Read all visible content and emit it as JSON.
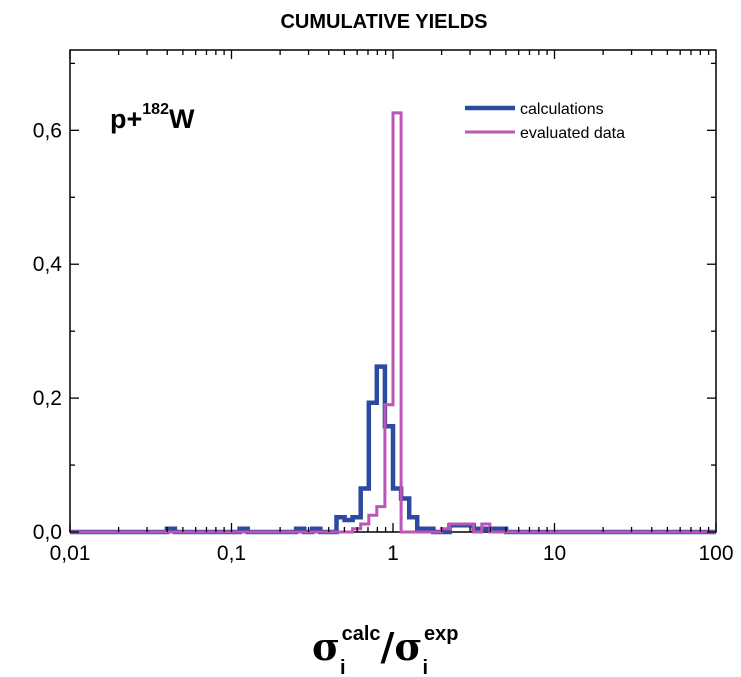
{
  "chart_data": {
    "type": "step-histogram",
    "title": "CUMULATIVE YIELDS",
    "annotation": {
      "prefix": "p+",
      "superscript": "182",
      "base": "W"
    },
    "xlabel": {
      "symbol": "σ",
      "sub": "i",
      "sup1": "calc",
      "slash": "/",
      "sup2": "exp"
    },
    "xscale": "log",
    "xlim": [
      0.01,
      100
    ],
    "ylim": [
      0,
      0.72
    ],
    "xticks": [
      0.01,
      0.1,
      1,
      10,
      100
    ],
    "xtick_labels": [
      "0,01",
      "0,1",
      "1",
      "10",
      "100"
    ],
    "yticks": [
      0.0,
      0.2,
      0.4,
      0.6
    ],
    "ytick_labels": [
      "0,0",
      "0,2",
      "0,4",
      "0,6"
    ],
    "legend_position": "top-right",
    "bin_edges": [
      0.01,
      0.0398,
      0.0447,
      0.1122,
      0.1259,
      0.2512,
      0.2818,
      0.3162,
      0.3548,
      0.4467,
      0.5012,
      0.5623,
      0.631,
      0.7079,
      0.7943,
      0.8913,
      1.0,
      1.122,
      1.259,
      1.413,
      1.585,
      1.778,
      1.995,
      2.239,
      2.512,
      2.818,
      3.162,
      3.548,
      3.981,
      4.467,
      5.012,
      100
    ],
    "series": [
      {
        "name": "calculations",
        "color": "#2b4aa0",
        "stroke_width": 4.5,
        "values": [
          0.0,
          0.005,
          0.0,
          0.005,
          0.0,
          0.005,
          0.0,
          0.005,
          0.0,
          0.022,
          0.018,
          0.022,
          0.065,
          0.193,
          0.247,
          0.158,
          0.065,
          0.05,
          0.022,
          0.005,
          0.005,
          0.0,
          0.0,
          0.01,
          0.01,
          0.01,
          0.005,
          0.005,
          0.005,
          0.005,
          0.0
        ]
      },
      {
        "name": "evaluated data",
        "color": "#bb55b8",
        "stroke_width": 3,
        "values": [
          0.0,
          0.0,
          0.0,
          0.0,
          0.0,
          0.0,
          0.0,
          0.0,
          0.0,
          0.0,
          0.0,
          0.005,
          0.012,
          0.025,
          0.038,
          0.19,
          0.626,
          0.0,
          0.0,
          0.0,
          0.0,
          0.0,
          0.005,
          0.012,
          0.012,
          0.012,
          0.0,
          0.012,
          0.0,
          0.0,
          0.0
        ]
      }
    ]
  }
}
